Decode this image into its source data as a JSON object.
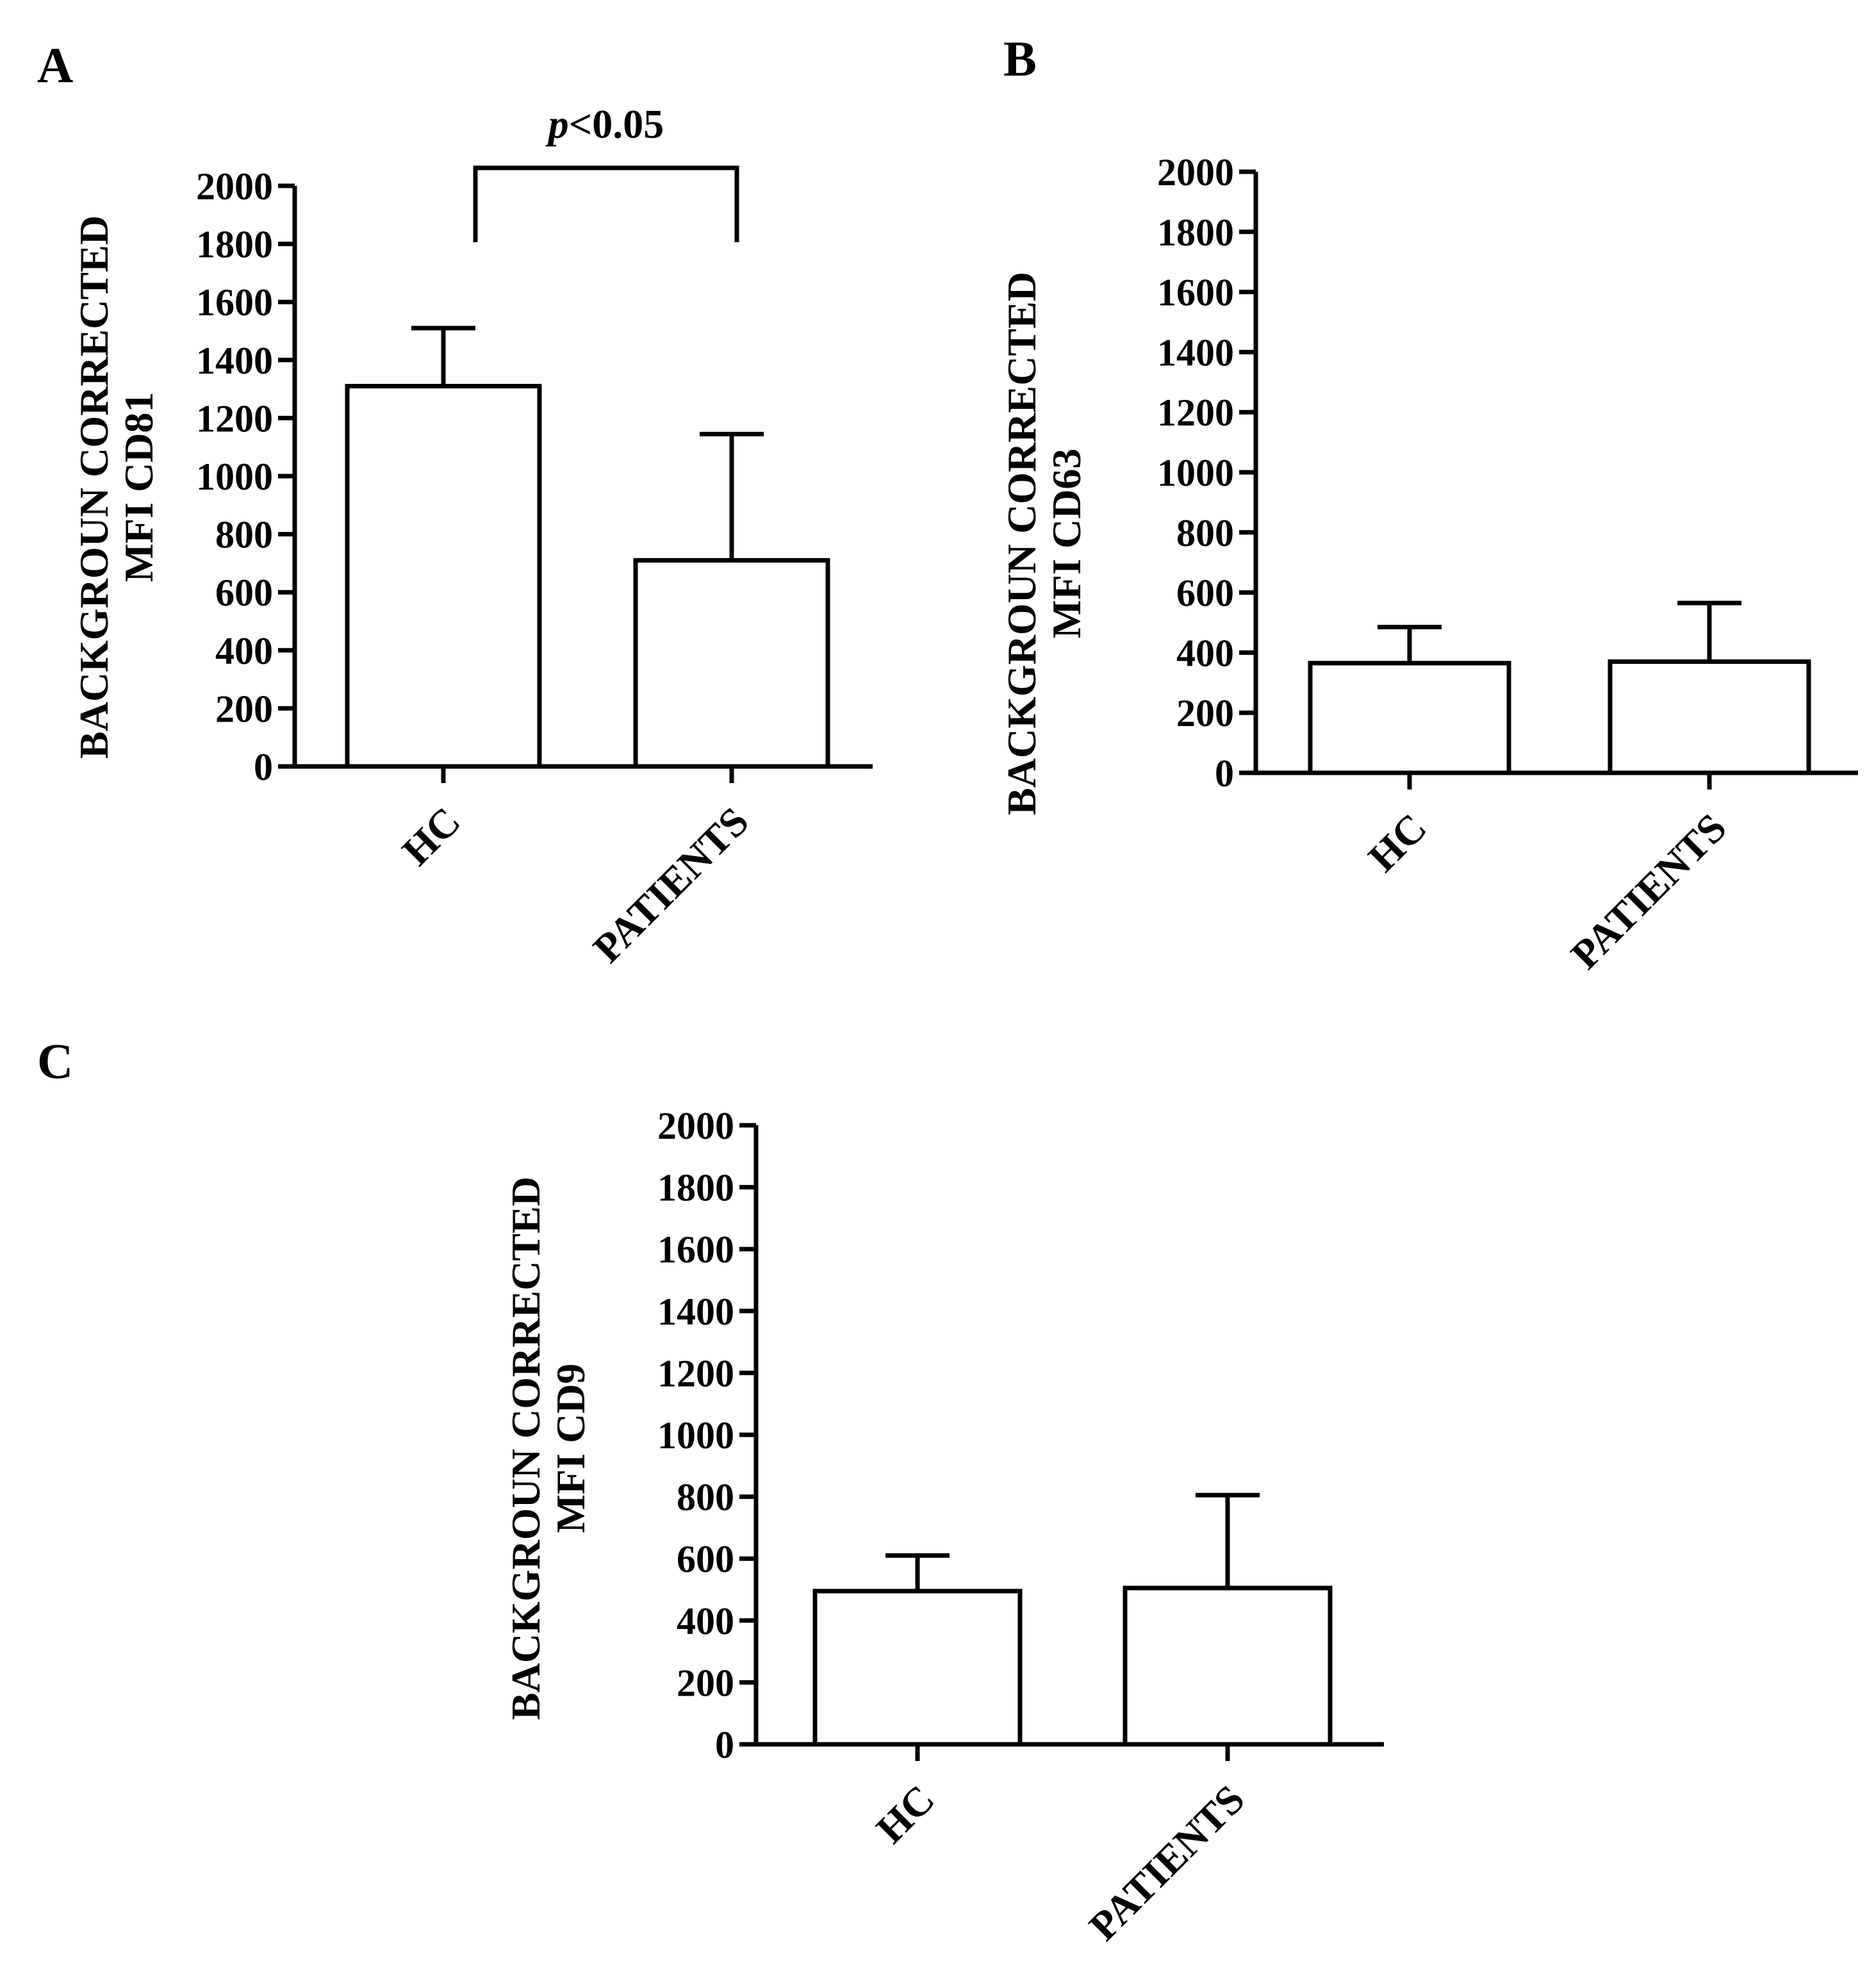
{
  "chart_data": [
    {
      "panel": "A",
      "type": "bar",
      "categories": [
        "HC",
        "PATIENTS"
      ],
      "series": [
        {
          "values": [
            1310,
            710
          ],
          "error_upper": [
            1510,
            1145
          ]
        }
      ],
      "ylabel": [
        "BACKGROUN CORRECTED",
        "MFI CD81"
      ],
      "ylim": [
        0,
        2000
      ],
      "yticks": [
        "0",
        "200",
        "400",
        "600",
        "800",
        "1000",
        "1200",
        "1400",
        "1600",
        "1800",
        "2000"
      ],
      "significance": {
        "from": 0,
        "to": 1,
        "p_italic": "p",
        "p_rest": "<0.05"
      },
      "grid": false
    },
    {
      "panel": "B",
      "type": "bar",
      "categories": [
        "HC",
        "PATIENTS"
      ],
      "series": [
        {
          "values": [
            365,
            370
          ],
          "error_upper": [
            485,
            565
          ]
        }
      ],
      "ylabel": [
        "BACKGROUN CORRECTED",
        "MFI CD63"
      ],
      "ylim": [
        0,
        2000
      ],
      "yticks": [
        "0",
        "200",
        "400",
        "600",
        "800",
        "1000",
        "1200",
        "1400",
        "1600",
        "1800",
        "2000"
      ],
      "grid": false
    },
    {
      "panel": "C",
      "type": "bar",
      "categories": [
        "HC",
        "PATIENTS"
      ],
      "series": [
        {
          "values": [
            495,
            505
          ],
          "error_upper": [
            610,
            805
          ]
        }
      ],
      "ylabel": [
        "BACKGROUN CORRECTED",
        "MFI CD9"
      ],
      "ylim": [
        0,
        2000
      ],
      "yticks": [
        "0",
        "200",
        "400",
        "600",
        "800",
        "1000",
        "1200",
        "1400",
        "1600",
        "1800",
        "2000"
      ],
      "grid": false
    }
  ]
}
